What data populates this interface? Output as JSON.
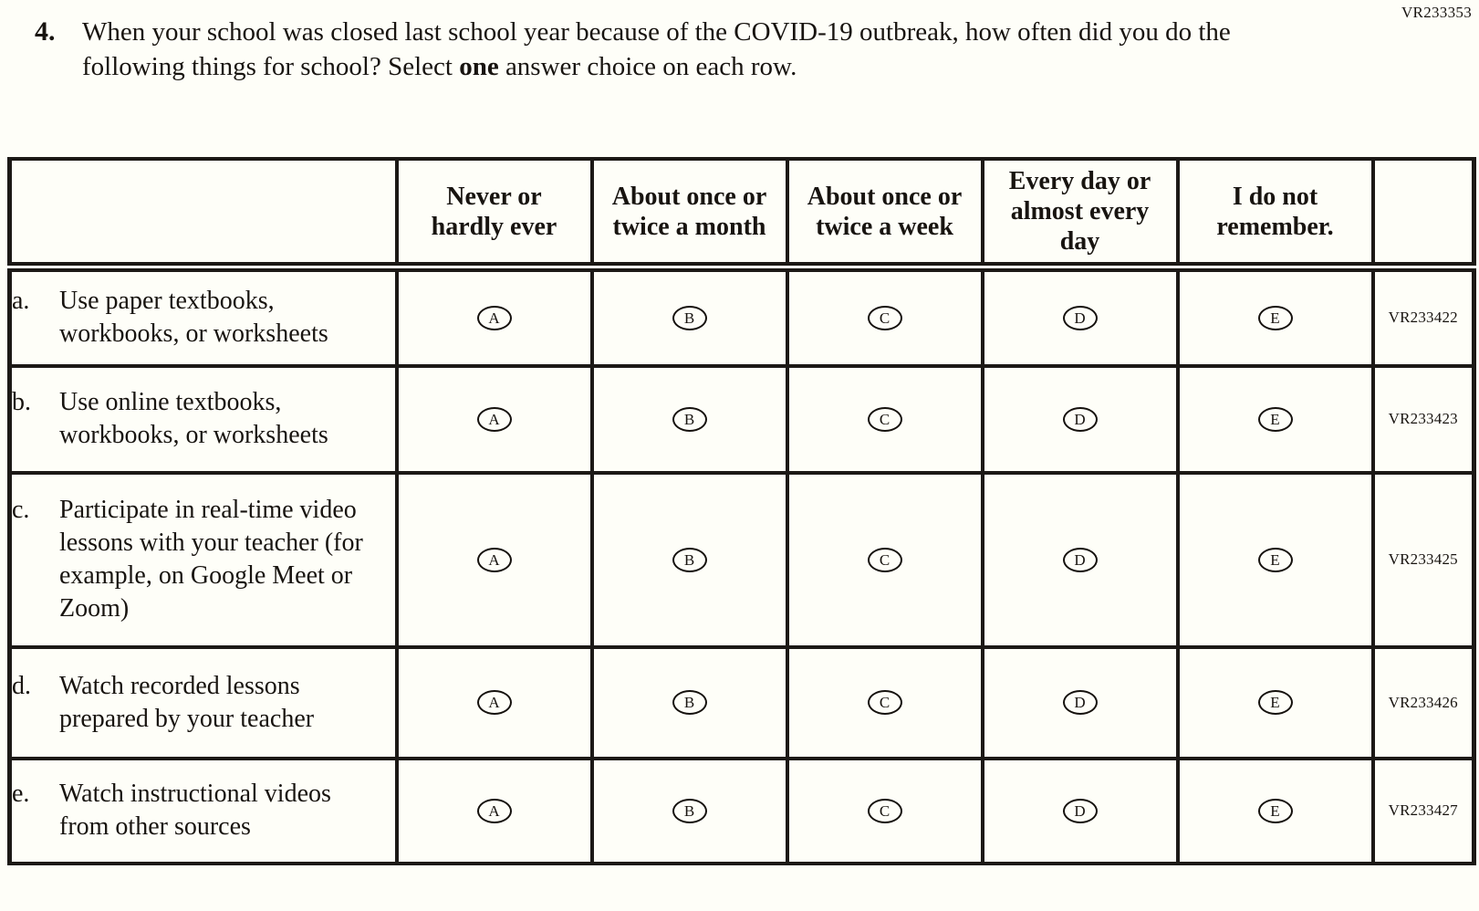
{
  "page_code": "VR233353",
  "question": {
    "number": "4.",
    "text_before": "When your school was closed last school year because of the COVID-19 outbreak, how often did you do the following things for school? Select ",
    "text_bold": "one",
    "text_after": " answer choice on each row."
  },
  "table": {
    "columns": [
      "Never or hardly ever",
      "About once or twice a month",
      "About once or twice a week",
      "Every day or almost every day",
      "I do not remember."
    ],
    "options": [
      "A",
      "B",
      "C",
      "D",
      "E"
    ],
    "rows": [
      {
        "letter": "a.",
        "text": "Use paper textbooks, workbooks, or worksheets",
        "code": "VR233422"
      },
      {
        "letter": "b.",
        "text": "Use online textbooks, workbooks, or worksheets",
        "code": "VR233423"
      },
      {
        "letter": "c.",
        "text": "Participate in real-time video lessons with your teacher (for example, on Google Meet or Zoom)",
        "code": "VR233425"
      },
      {
        "letter": "d.",
        "text": "Watch recorded lessons prepared by your teacher",
        "code": "VR233426"
      },
      {
        "letter": "e.",
        "text": "Watch instructional videos from other sources",
        "code": "VR233427"
      }
    ]
  },
  "colors": {
    "background": "#fefef8",
    "ink": "#181410",
    "border": "#1c1916"
  }
}
